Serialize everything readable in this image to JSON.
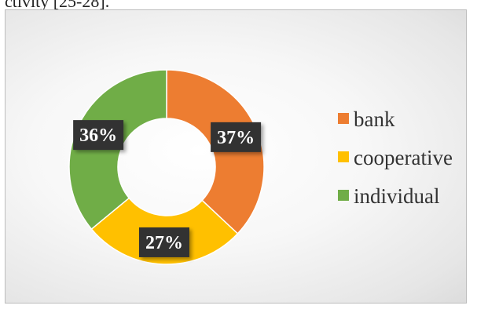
{
  "page": {
    "top_text": "ctivity [25-28]."
  },
  "chart_data": {
    "type": "pie",
    "style": "donut",
    "title": "",
    "categories": [
      "bank",
      "cooperative",
      "individual"
    ],
    "values": [
      37,
      27,
      36
    ],
    "labels": [
      "37%",
      "27%",
      "36%"
    ],
    "colors": [
      "#ED7D31",
      "#FFC000",
      "#70AD47"
    ],
    "label_box_color": "#333333",
    "legend_position": "right"
  }
}
